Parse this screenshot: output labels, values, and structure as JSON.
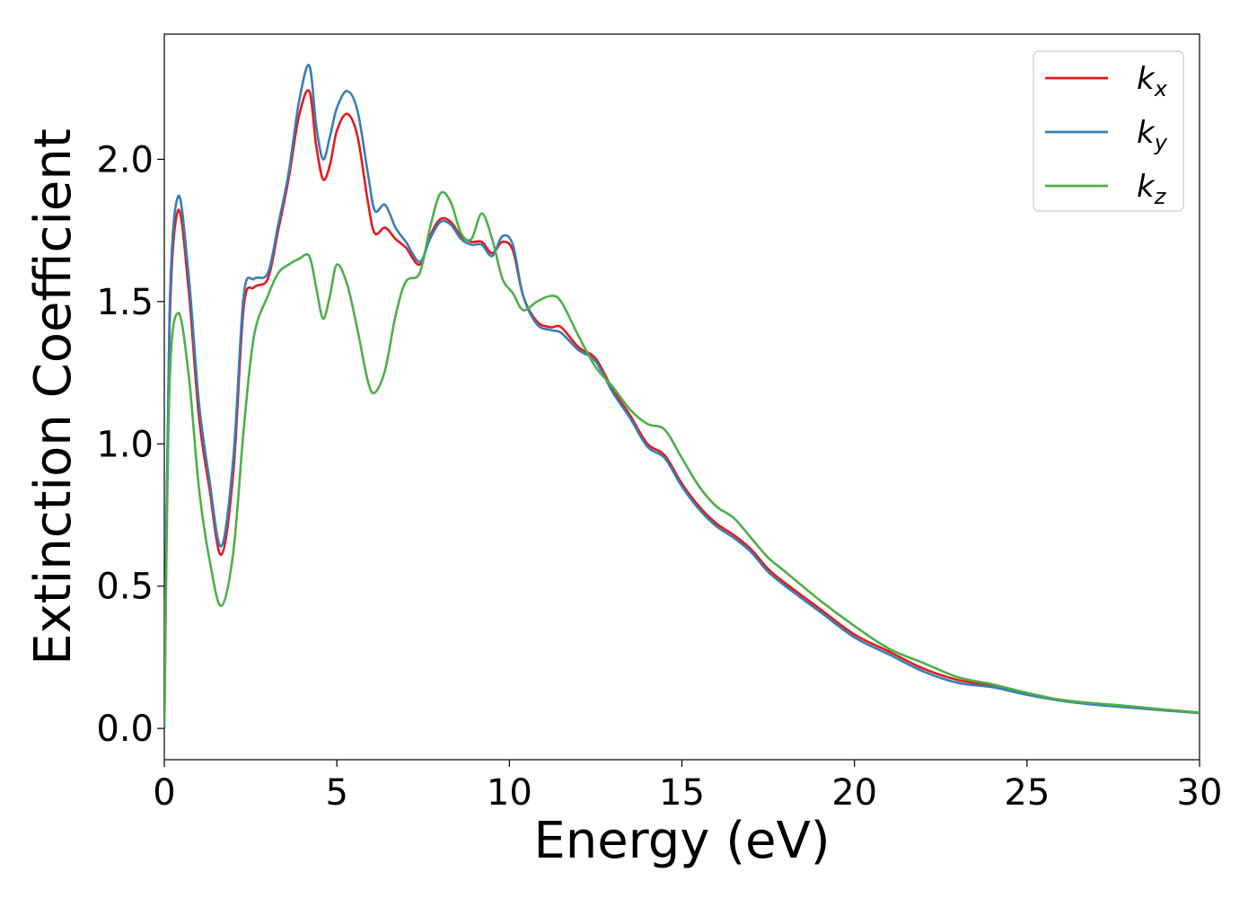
{
  "chart_data": {
    "type": "line",
    "xlabel": "Energy (eV)",
    "ylabel": "Extinction Coefficient",
    "xlim": [
      0,
      30
    ],
    "ylim": [
      -0.11,
      2.44
    ],
    "xticks": [
      "0",
      "5",
      "10",
      "15",
      "20",
      "25",
      "30"
    ],
    "yticks": [
      "0.0",
      "0.5",
      "1.0",
      "1.5",
      "2.0"
    ],
    "grid": false,
    "legend_position": "top-right",
    "series": [
      {
        "name": "k",
        "subscript": "x",
        "color": "#e41a1c",
        "x": [
          0,
          0.15,
          0.4,
          0.7,
          1.0,
          1.3,
          1.65,
          2.0,
          2.3,
          2.6,
          3.0,
          3.3,
          3.6,
          3.9,
          4.2,
          4.4,
          4.6,
          4.8,
          5.0,
          5.3,
          5.6,
          5.9,
          6.1,
          6.4,
          6.7,
          7.0,
          7.4,
          7.7,
          8.0,
          8.3,
          8.6,
          8.9,
          9.2,
          9.5,
          9.8,
          10.1,
          10.4,
          10.8,
          11.2,
          11.5,
          12.0,
          12.5,
          13.0,
          13.5,
          14.0,
          14.5,
          15.0,
          15.5,
          16.0,
          16.5,
          17.0,
          17.5,
          18.0,
          19.0,
          20.0,
          21.0,
          22.0,
          23.0,
          24.0,
          25.0,
          26.0,
          27.0,
          28.0,
          29.0,
          30.0
        ],
        "values": [
          0.0,
          1.4,
          1.82,
          1.55,
          1.1,
          0.85,
          0.61,
          0.9,
          1.48,
          1.55,
          1.58,
          1.75,
          1.93,
          2.15,
          2.24,
          2.05,
          1.93,
          1.98,
          2.1,
          2.16,
          2.08,
          1.85,
          1.74,
          1.76,
          1.72,
          1.69,
          1.63,
          1.73,
          1.79,
          1.78,
          1.73,
          1.71,
          1.71,
          1.67,
          1.71,
          1.68,
          1.52,
          1.43,
          1.41,
          1.41,
          1.34,
          1.3,
          1.19,
          1.1,
          1.0,
          0.96,
          0.86,
          0.78,
          0.72,
          0.68,
          0.63,
          0.56,
          0.51,
          0.42,
          0.33,
          0.27,
          0.21,
          0.17,
          0.15,
          0.12,
          0.1,
          0.085,
          0.075,
          0.065,
          0.055
        ]
      },
      {
        "name": "k",
        "subscript": "y",
        "color": "#377eb8",
        "x": [
          0,
          0.15,
          0.4,
          0.7,
          1.0,
          1.3,
          1.65,
          2.0,
          2.3,
          2.6,
          3.0,
          3.3,
          3.6,
          3.9,
          4.2,
          4.4,
          4.6,
          4.8,
          5.0,
          5.3,
          5.6,
          5.9,
          6.1,
          6.4,
          6.7,
          7.0,
          7.4,
          7.7,
          8.0,
          8.3,
          8.6,
          8.9,
          9.2,
          9.5,
          9.8,
          10.1,
          10.4,
          10.8,
          11.2,
          11.5,
          12.0,
          12.5,
          13.0,
          13.5,
          14.0,
          14.5,
          15.0,
          15.5,
          16.0,
          16.5,
          17.0,
          17.5,
          18.0,
          19.0,
          20.0,
          21.0,
          22.0,
          23.0,
          24.0,
          25.0,
          26.0,
          27.0,
          28.0,
          29.0,
          30.0
        ],
        "values": [
          0.0,
          1.45,
          1.87,
          1.6,
          1.15,
          0.88,
          0.64,
          0.95,
          1.52,
          1.58,
          1.6,
          1.77,
          1.95,
          2.2,
          2.33,
          2.12,
          2.0,
          2.08,
          2.18,
          2.24,
          2.17,
          1.95,
          1.82,
          1.84,
          1.76,
          1.71,
          1.64,
          1.72,
          1.78,
          1.77,
          1.72,
          1.7,
          1.7,
          1.66,
          1.73,
          1.7,
          1.52,
          1.42,
          1.4,
          1.39,
          1.33,
          1.29,
          1.18,
          1.09,
          0.99,
          0.95,
          0.85,
          0.77,
          0.71,
          0.67,
          0.62,
          0.55,
          0.5,
          0.41,
          0.32,
          0.26,
          0.2,
          0.16,
          0.145,
          0.118,
          0.097,
          0.083,
          0.073,
          0.063,
          0.054
        ]
      },
      {
        "name": "k",
        "subscript": "z",
        "color": "#4daf4a",
        "x": [
          0,
          0.15,
          0.4,
          0.7,
          1.0,
          1.3,
          1.65,
          2.0,
          2.3,
          2.6,
          3.0,
          3.3,
          3.6,
          3.9,
          4.2,
          4.4,
          4.6,
          4.8,
          5.0,
          5.3,
          5.6,
          5.9,
          6.1,
          6.4,
          6.7,
          7.0,
          7.4,
          7.7,
          8.0,
          8.3,
          8.6,
          8.9,
          9.2,
          9.5,
          9.8,
          10.1,
          10.4,
          10.8,
          11.2,
          11.5,
          12.0,
          12.5,
          13.0,
          13.5,
          14.0,
          14.5,
          15.0,
          15.5,
          16.0,
          16.5,
          17.0,
          17.5,
          18.0,
          19.0,
          20.0,
          21.0,
          22.0,
          23.0,
          24.0,
          25.0,
          26.0,
          27.0,
          28.0,
          29.0,
          30.0
        ],
        "values": [
          0.0,
          1.2,
          1.46,
          1.25,
          0.85,
          0.6,
          0.43,
          0.62,
          1.05,
          1.38,
          1.52,
          1.6,
          1.63,
          1.65,
          1.66,
          1.55,
          1.44,
          1.52,
          1.63,
          1.56,
          1.4,
          1.22,
          1.18,
          1.26,
          1.45,
          1.57,
          1.6,
          1.76,
          1.88,
          1.85,
          1.74,
          1.72,
          1.81,
          1.72,
          1.58,
          1.53,
          1.47,
          1.5,
          1.52,
          1.5,
          1.38,
          1.27,
          1.2,
          1.12,
          1.07,
          1.05,
          0.95,
          0.85,
          0.78,
          0.74,
          0.67,
          0.6,
          0.55,
          0.45,
          0.36,
          0.28,
          0.23,
          0.18,
          0.155,
          0.125,
          0.1,
          0.088,
          0.078,
          0.066,
          0.056
        ]
      }
    ]
  }
}
